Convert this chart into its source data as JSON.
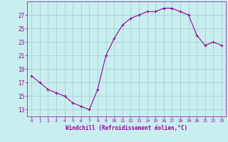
{
  "x": [
    0,
    1,
    2,
    3,
    4,
    5,
    6,
    7,
    8,
    9,
    10,
    11,
    12,
    13,
    14,
    15,
    16,
    17,
    18,
    19,
    20,
    21,
    22,
    23
  ],
  "y": [
    18.0,
    17.0,
    16.0,
    15.5,
    15.0,
    14.0,
    13.5,
    13.0,
    16.0,
    21.0,
    23.5,
    25.5,
    26.5,
    27.0,
    27.5,
    27.5,
    28.0,
    28.0,
    27.5,
    27.0,
    24.0,
    22.5,
    23.0,
    22.5
  ],
  "line_color": "#990099",
  "marker": "+",
  "marker_size": 3,
  "marker_linewidth": 0.8,
  "line_width": 0.8,
  "bg_color": "#c8eef0",
  "grid_color": "#99cccc",
  "xlabel": "Windchill (Refroidissement éolien,°C)",
  "xlabel_color": "#990099",
  "tick_color": "#990099",
  "spine_color": "#990099",
  "ylim": [
    12,
    29
  ],
  "xlim": [
    -0.5,
    23.5
  ],
  "yticks": [
    13,
    15,
    17,
    19,
    21,
    23,
    25,
    27
  ],
  "xtick_labels": [
    "0",
    "1",
    "2",
    "3",
    "4",
    "5",
    "6",
    "7",
    "8",
    "9",
    "10",
    "11",
    "12",
    "13",
    "14",
    "15",
    "16",
    "17",
    "18",
    "19",
    "20",
    "21",
    "22",
    "23"
  ],
  "ylabel_fontsize": 5.5,
  "xlabel_fontsize": 5.5,
  "xtick_fontsize": 4.5,
  "ytick_fontsize": 5.5
}
